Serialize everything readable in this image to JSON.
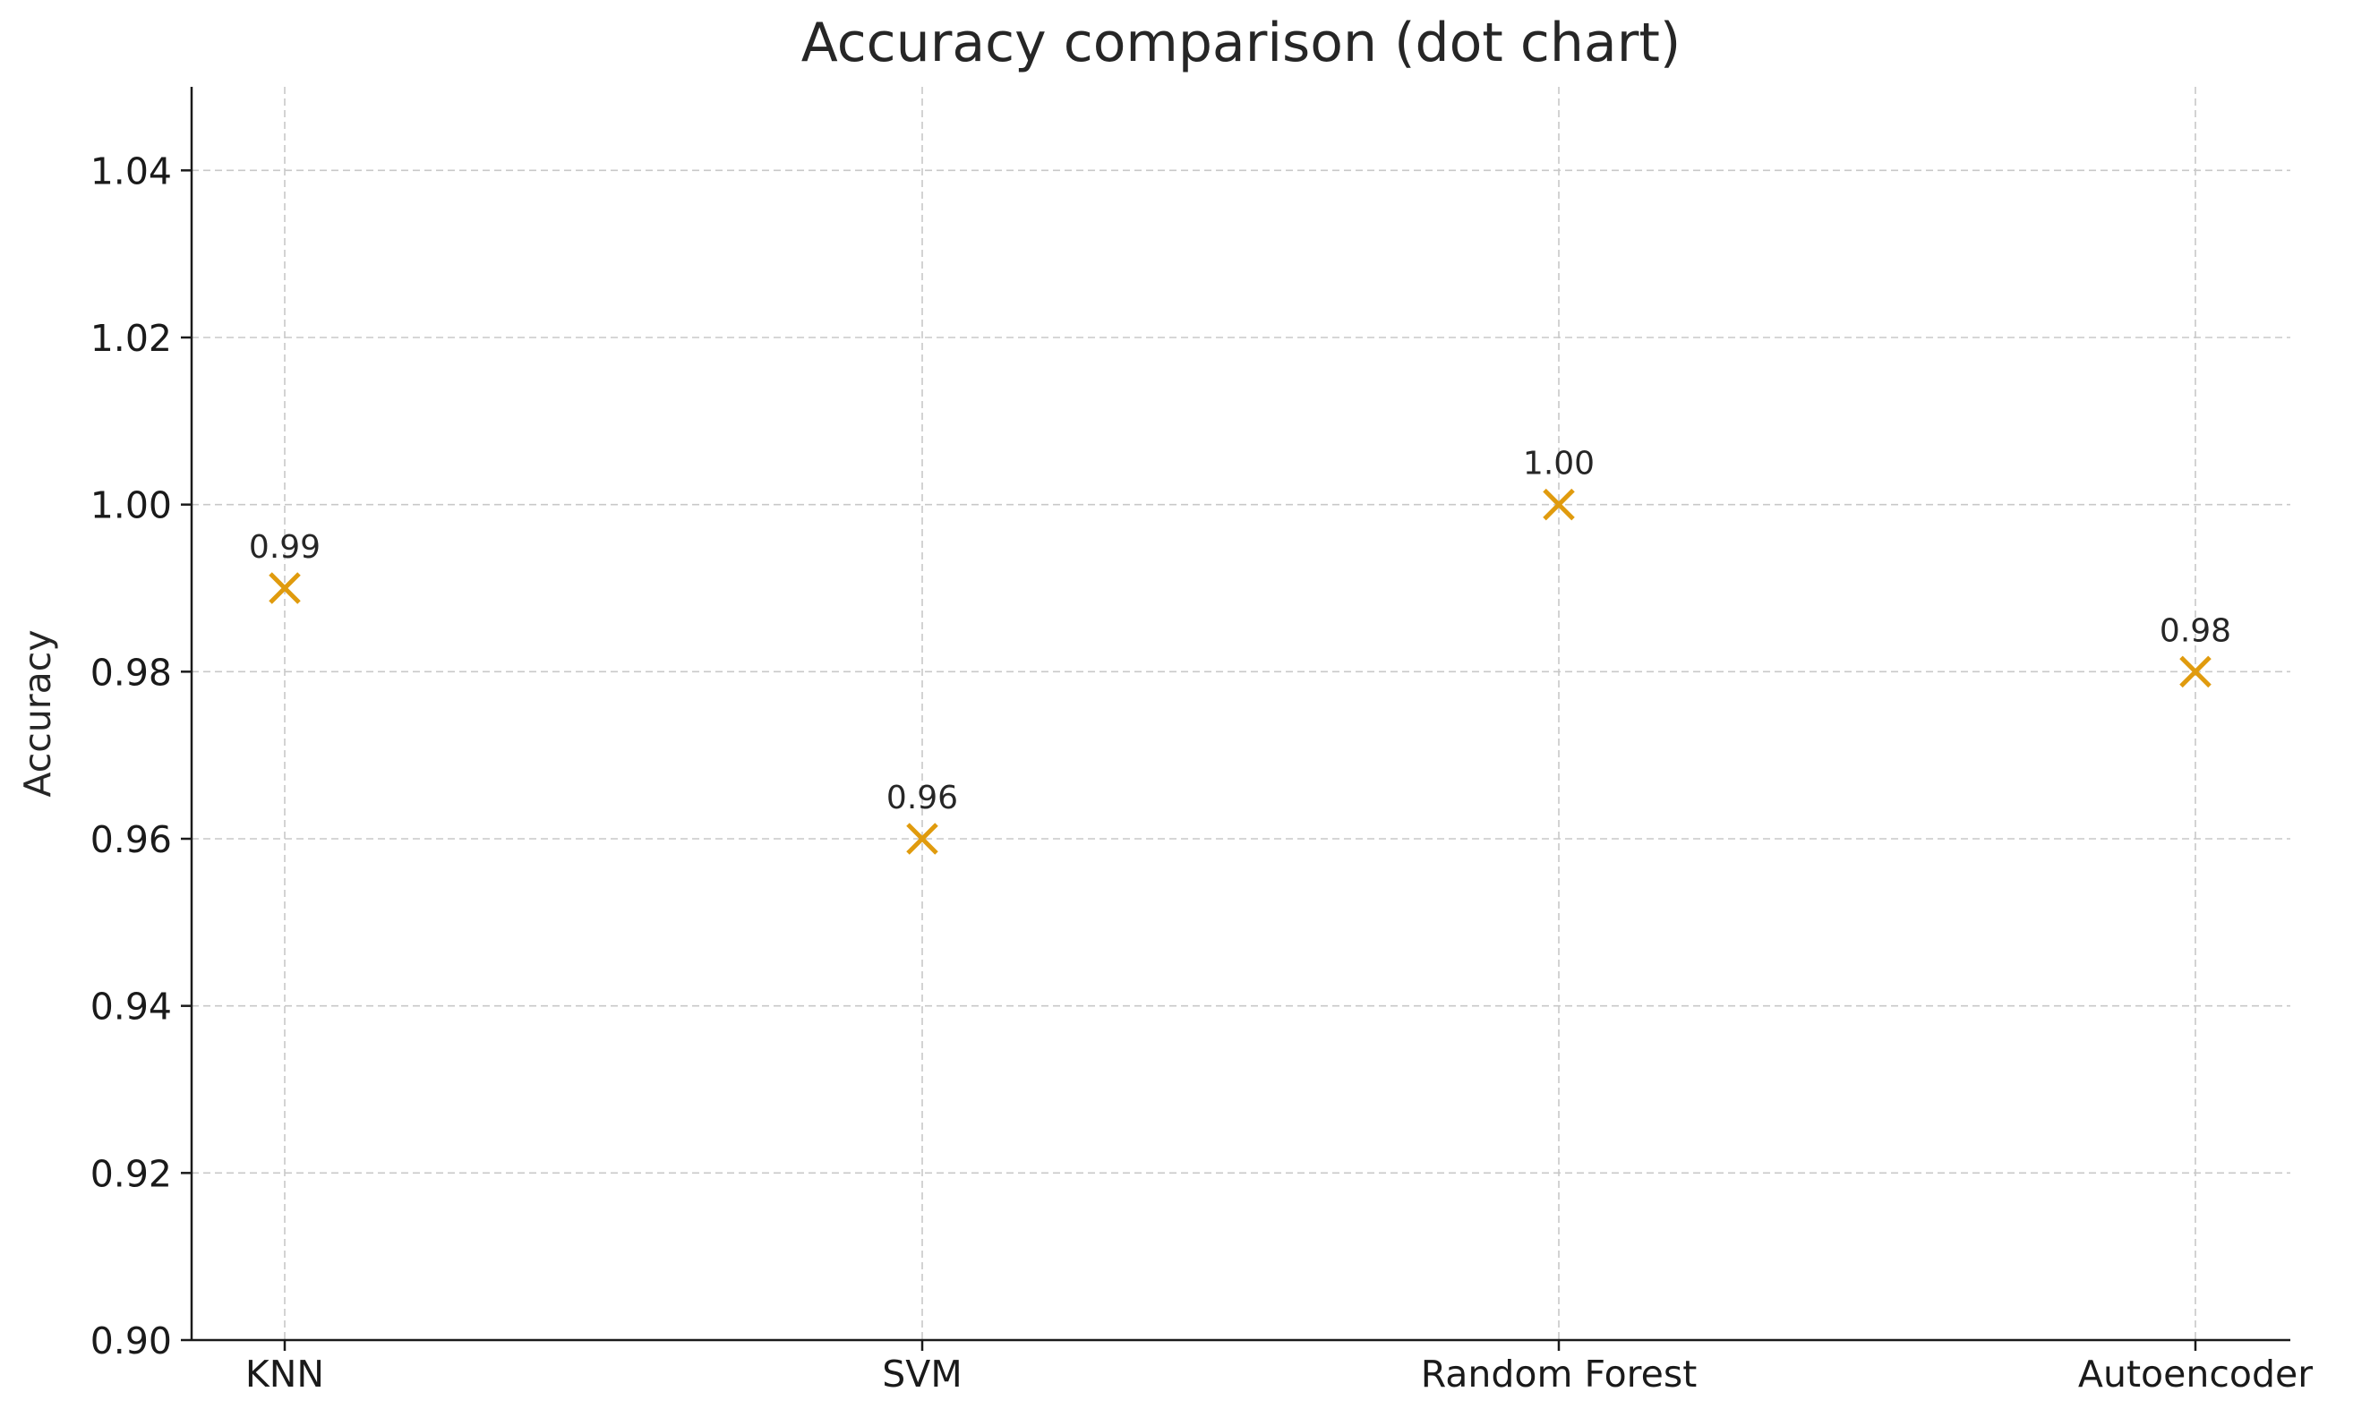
{
  "chart_data": {
    "type": "scatter",
    "title": "Accuracy comparison (dot chart)",
    "xlabel": "",
    "ylabel": "Accuracy",
    "categories": [
      "KNN",
      "SVM",
      "Random Forest",
      "Autoencoder"
    ],
    "values": [
      0.99,
      0.96,
      1.0,
      0.98
    ],
    "value_labels": [
      "0.99",
      "0.96",
      "1.00",
      "0.98"
    ],
    "ylim": [
      0.9,
      1.05
    ],
    "yticks": [
      0.9,
      0.92,
      0.94,
      0.96,
      0.98,
      1.0,
      1.02,
      1.04
    ],
    "ytick_labels": [
      "0.90",
      "0.92",
      "0.94",
      "0.96",
      "0.98",
      "1.00",
      "1.02",
      "1.04"
    ],
    "marker": "x",
    "marker_color": "#e09b0e",
    "grid": true,
    "grid_color": "#c8c8c8",
    "legend": "none"
  }
}
